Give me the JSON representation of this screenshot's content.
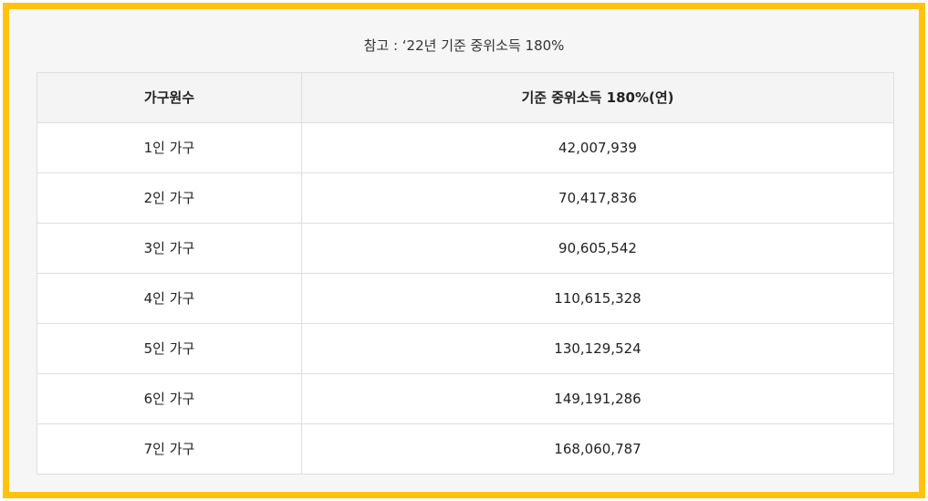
{
  "caption": "참고 : ‘22년 기준 중위소득 180%",
  "table": {
    "headers": [
      "가구원수",
      "기준 중위소득 180%(연)"
    ],
    "rows": [
      [
        "1인 가구",
        "42,007,939"
      ],
      [
        "2인 가구",
        "70,417,836"
      ],
      [
        "3인 가구",
        "90,605,542"
      ],
      [
        "4인 가구",
        "110,615,328"
      ],
      [
        "5인 가구",
        "130,129,524"
      ],
      [
        "6인 가구",
        "149,191,286"
      ],
      [
        "7인 가구",
        "168,060,787"
      ]
    ]
  },
  "colors": {
    "frame_border": "#FFC20E",
    "frame_background": "#f6f6f6",
    "header_background": "#f4f4f4",
    "cell_border": "#dedede"
  }
}
